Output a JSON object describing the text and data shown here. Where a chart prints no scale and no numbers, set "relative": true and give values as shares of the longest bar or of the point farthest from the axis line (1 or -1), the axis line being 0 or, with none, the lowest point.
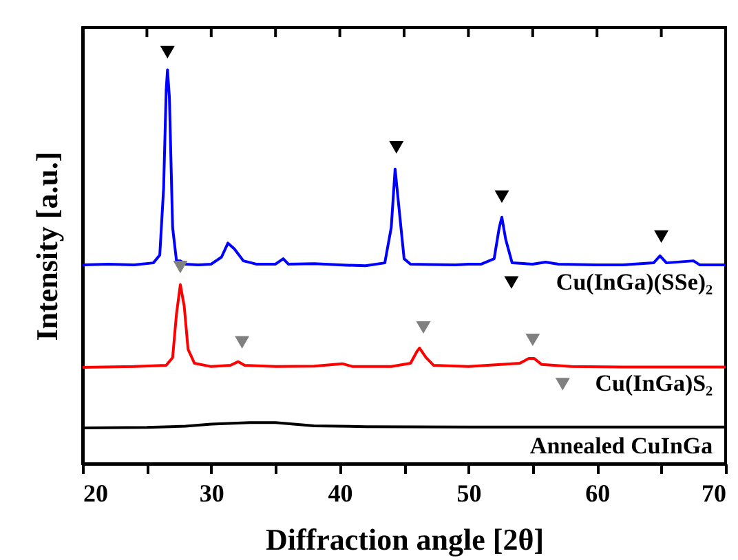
{
  "chart_data": {
    "type": "line",
    "xlabel": "Diffraction angle [2θ]",
    "ylabel": "Intensity [a.u.]",
    "relative": true,
    "xlim": [
      20,
      70
    ],
    "xticks": [
      20,
      {
        "value": 25,
        "label": null
      },
      30,
      {
        "value": 35,
        "label": null
      },
      40,
      {
        "value": 45,
        "label": null
      },
      50,
      {
        "value": 55,
        "label": null
      },
      60,
      {
        "value": 65,
        "label": null
      },
      70
    ],
    "grid": false,
    "legend": "right",
    "tick_labels": "x",
    "series": [
      {
        "color": "#0000ff",
        "x": [
          20,
          22,
          24,
          25.5,
          26.0,
          26.3,
          26.5,
          26.6,
          26.75,
          27.0,
          27.3,
          27.6,
          28,
          29,
          30,
          30.8,
          31.3,
          31.8,
          32.5,
          33.5,
          35,
          35.6,
          36,
          38,
          40,
          42,
          43.5,
          44.0,
          44.3,
          44.6,
          45.0,
          45.5,
          47,
          49,
          50,
          51,
          52.0,
          52.4,
          52.6,
          52.9,
          53.4,
          55,
          56,
          57,
          60,
          62,
          64.4,
          64.9,
          65.4,
          67.5,
          68,
          70
        ],
        "values": [
          0.483,
          0.485,
          0.483,
          0.488,
          0.507,
          0.67,
          0.909,
          0.957,
          0.89,
          0.574,
          0.493,
          0.493,
          0.485,
          0.483,
          0.485,
          0.502,
          0.536,
          0.522,
          0.493,
          0.485,
          0.485,
          0.498,
          0.485,
          0.486,
          0.483,
          0.481,
          0.488,
          0.574,
          0.716,
          0.622,
          0.498,
          0.485,
          0.484,
          0.483,
          0.485,
          0.485,
          0.498,
          0.574,
          0.599,
          0.545,
          0.488,
          0.485,
          0.49,
          0.485,
          0.483,
          0.483,
          0.488,
          0.505,
          0.488,
          0.493,
          0.483,
          0.483
        ]
      },
      {
        "color": "#ff0000",
        "x": [
          20,
          24,
          26.5,
          27.0,
          27.3,
          27.6,
          27.9,
          28.2,
          28.7,
          30,
          31.5,
          32.1,
          32.6,
          35,
          38,
          40.2,
          41,
          44,
          45.5,
          46.0,
          46.2,
          46.7,
          47.3,
          50,
          54.0,
          54.7,
          55.1,
          55.7,
          58,
          62,
          66,
          70
        ],
        "values": [
          0.234,
          0.236,
          0.239,
          0.258,
          0.364,
          0.435,
          0.383,
          0.278,
          0.244,
          0.236,
          0.239,
          0.248,
          0.239,
          0.236,
          0.237,
          0.243,
          0.236,
          0.236,
          0.244,
          0.273,
          0.281,
          0.258,
          0.239,
          0.236,
          0.244,
          0.256,
          0.256,
          0.241,
          0.236,
          0.235,
          0.235,
          0.235
        ]
      },
      {
        "name": "Annealed CuInGa",
        "color": "#000000",
        "x": [
          20,
          25,
          28,
          30,
          33,
          35,
          38,
          42,
          50,
          60,
          70
        ],
        "values": [
          0.087,
          0.088,
          0.091,
          0.096,
          0.1,
          0.1,
          0.092,
          0.09,
          0.089,
          0.089,
          0.089
        ]
      },
      {
        "type": "scatter",
        "name": "Cu(InGa)(SSe)₂",
        "marker": "triangle",
        "color": "#000000",
        "x": [
          26.6,
          44.4,
          52.6,
          65.0
        ],
        "values": [
          1.0,
          0.769,
          0.649,
          0.552
        ]
      },
      {
        "type": "scatter",
        "name": "Cu(InGa)S₂",
        "marker": "triangle",
        "color": "#808080",
        "x": [
          27.6,
          32.4,
          46.5,
          55.0
        ],
        "values": [
          0.478,
          0.295,
          0.331,
          0.301
        ]
      }
    ]
  }
}
